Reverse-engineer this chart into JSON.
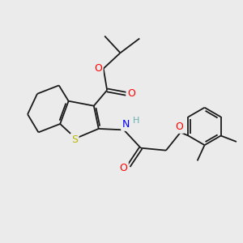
{
  "background_color": "#ebebeb",
  "figsize": [
    3.0,
    3.0
  ],
  "dpi": 100,
  "atom_colors": {
    "S": "#b8b800",
    "N": "#0000ff",
    "O": "#ff0000",
    "C": "#000000",
    "H": "#6ab0b0"
  },
  "bond_color": "#1a1a1a",
  "bond_width": 1.3
}
